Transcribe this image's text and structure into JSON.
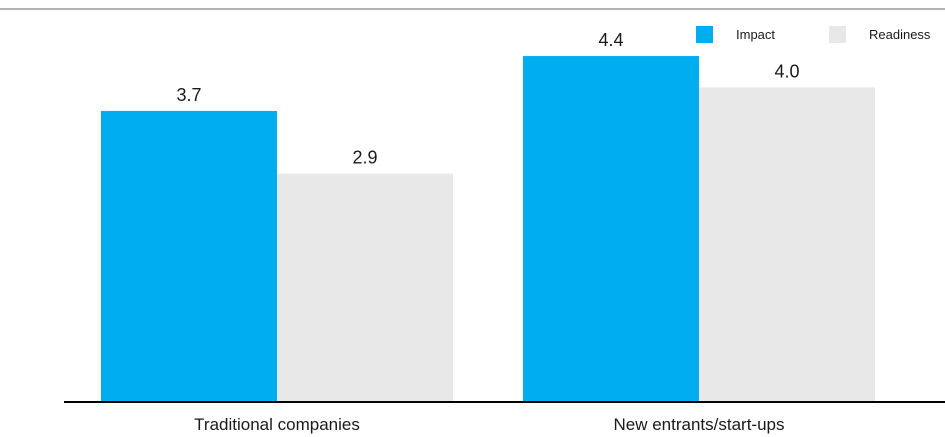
{
  "chart_data": {
    "type": "bar",
    "categories": [
      "Traditional companies",
      "New entrants/start-ups"
    ],
    "series": [
      {
        "name": "Impact",
        "values": [
          3.7,
          4.4
        ],
        "color": "#00aeef"
      },
      {
        "name": "Readiness",
        "values": [
          2.9,
          4.0
        ],
        "color": "#e7e8e7"
      }
    ],
    "value_labels": [
      [
        "3.7",
        "4.4"
      ],
      [
        "2.9",
        "4.0"
      ]
    ],
    "ylim": [
      0,
      5
    ],
    "grid": false,
    "legend_position": "top-right",
    "axis_color": "#000000",
    "top_rule_color": "#b3b3b3"
  }
}
